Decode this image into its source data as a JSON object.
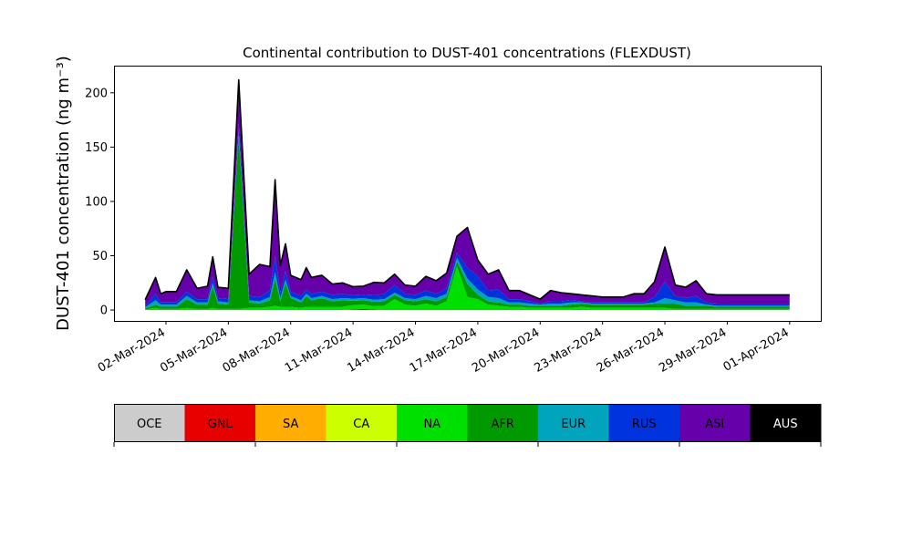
{
  "chart_data": {
    "type": "area",
    "stacked": true,
    "title": "Continental contribution to DUST-401 concentrations (FLEXDUST)",
    "ylabel": "DUST-401 concentration (ng m⁻³)",
    "xlabel": "",
    "ylim": [
      -10,
      225
    ],
    "yticks": [
      0,
      50,
      100,
      150,
      200
    ],
    "xlim": [
      "2024-02-28T12:00",
      "2024-04-02T12:00"
    ],
    "xticks": [
      "02-Mar-2024",
      "05-Mar-2024",
      "08-Mar-2024",
      "11-Mar-2024",
      "14-Mar-2024",
      "17-Mar-2024",
      "20-Mar-2024",
      "23-Mar-2024",
      "26-Mar-2024",
      "29-Mar-2024",
      "01-Apr-2024"
    ],
    "grid": false,
    "categories": [
      "OCE",
      "GNL",
      "SA",
      "CA",
      "NA",
      "AFR",
      "EUR",
      "RUS",
      "ASI",
      "AUS"
    ],
    "colors": [
      "#cccccc",
      "#e60000",
      "#ffad00",
      "#ccff00",
      "#00e000",
      "#009a00",
      "#00a5bd",
      "#0033dd",
      "#6600aa",
      "#000000"
    ],
    "category_text_colors": [
      "#000000",
      "#000000",
      "#000000",
      "#000000",
      "#000000",
      "#000000",
      "#000000",
      "#000000",
      "#000000",
      "#ffffff"
    ],
    "x": [
      "2024-03-01T00:00",
      "2024-03-01T12:00",
      "2024-03-01T18:00",
      "2024-03-02T00:00",
      "2024-03-02T12:00",
      "2024-03-03T00:00",
      "2024-03-03T12:00",
      "2024-03-04T00:00",
      "2024-03-04T06:00",
      "2024-03-04T12:00",
      "2024-03-05T00:00",
      "2024-03-05T12:00",
      "2024-03-06T00:00",
      "2024-03-06T12:00",
      "2024-03-07T00:00",
      "2024-03-07T06:00",
      "2024-03-07T12:00",
      "2024-03-07T18:00",
      "2024-03-08T00:00",
      "2024-03-08T12:00",
      "2024-03-08T18:00",
      "2024-03-09T00:00",
      "2024-03-09T12:00",
      "2024-03-10T00:00",
      "2024-03-10T12:00",
      "2024-03-11T00:00",
      "2024-03-11T12:00",
      "2024-03-12T00:00",
      "2024-03-12T12:00",
      "2024-03-13T00:00",
      "2024-03-13T12:00",
      "2024-03-14T00:00",
      "2024-03-14T12:00",
      "2024-03-15T00:00",
      "2024-03-15T12:00",
      "2024-03-16T00:00",
      "2024-03-16T12:00",
      "2024-03-17T00:00",
      "2024-03-17T12:00",
      "2024-03-18T00:00",
      "2024-03-18T12:00",
      "2024-03-19T00:00",
      "2024-03-19T12:00",
      "2024-03-20T00:00",
      "2024-03-20T12:00",
      "2024-03-21T00:00",
      "2024-03-21T12:00",
      "2024-03-22T00:00",
      "2024-03-22T12:00",
      "2024-03-23T00:00",
      "2024-03-23T12:00",
      "2024-03-24T00:00",
      "2024-03-24T12:00",
      "2024-03-25T00:00",
      "2024-03-25T12:00",
      "2024-03-26T00:00",
      "2024-03-26T12:00",
      "2024-03-27T00:00",
      "2024-03-27T12:00",
      "2024-03-28T00:00",
      "2024-03-28T12:00",
      "2024-03-29T00:00",
      "2024-03-29T12:00",
      "2024-03-30T00:00",
      "2024-03-30T12:00",
      "2024-03-31T00:00",
      "2024-03-31T12:00",
      "2024-04-01T00:00"
    ],
    "series": [
      {
        "name": "OCE",
        "values": [
          0,
          0,
          0,
          0,
          0,
          0,
          0,
          0,
          0,
          0,
          0,
          0,
          0,
          0,
          0,
          0,
          0,
          0,
          0,
          0,
          0,
          0,
          0,
          0,
          0,
          0,
          0,
          0,
          0,
          0,
          0,
          0,
          0,
          0,
          0,
          0,
          0,
          0,
          0,
          0,
          0,
          0,
          0,
          0,
          0,
          0,
          0,
          0,
          0,
          0,
          0,
          0,
          0,
          0,
          0,
          0,
          0,
          0,
          0,
          0,
          0,
          0,
          0,
          0,
          0,
          0,
          0,
          0
        ]
      },
      {
        "name": "GNL",
        "values": [
          0,
          0,
          0,
          0,
          0,
          0,
          0,
          0,
          0,
          0,
          0,
          0,
          0,
          0,
          0,
          0,
          0,
          0,
          0,
          0,
          0,
          0,
          0,
          0,
          0,
          0.5,
          1,
          0.5,
          0,
          0,
          0,
          0,
          0,
          0,
          0,
          0,
          0,
          0,
          0,
          0,
          0,
          0,
          0,
          0,
          0,
          0,
          0,
          0,
          0,
          0,
          0,
          0,
          0,
          0,
          0,
          0,
          0,
          0,
          0,
          0,
          0,
          0,
          0,
          0,
          0,
          0,
          0,
          0
        ]
      },
      {
        "name": "SA",
        "values": [
          0,
          0,
          0,
          0,
          0,
          0,
          0,
          0,
          0,
          0,
          0,
          0,
          0,
          0,
          0,
          0,
          0,
          0,
          0,
          0,
          0,
          0,
          0,
          0,
          0,
          0,
          0,
          0,
          0,
          0,
          0,
          0,
          0,
          0,
          0,
          0,
          0,
          0,
          0,
          0,
          0,
          0,
          0,
          0,
          0,
          0,
          0,
          0,
          0,
          0,
          0,
          0,
          0,
          0,
          0,
          0,
          0,
          0,
          0,
          0,
          0,
          0,
          0,
          0,
          0,
          0,
          0,
          0
        ]
      },
      {
        "name": "CA",
        "values": [
          0,
          0,
          0,
          0,
          0,
          0,
          0,
          0,
          0,
          0,
          0,
          0,
          0,
          0,
          0,
          0,
          0,
          0,
          0,
          0,
          0,
          0,
          0,
          0,
          0,
          0,
          0,
          0,
          0,
          0,
          0,
          0,
          0,
          0,
          0,
          0,
          0,
          0,
          0,
          0,
          0,
          0,
          0,
          0,
          0,
          0,
          0,
          0,
          0,
          0,
          0,
          0,
          0,
          0,
          0,
          0,
          0,
          0,
          0,
          0,
          0,
          0,
          0,
          0,
          0,
          0,
          0,
          0
        ]
      },
      {
        "name": "NA",
        "values": [
          0.5,
          2,
          1,
          1,
          1,
          2,
          1,
          1,
          2,
          1,
          1,
          1,
          2,
          2,
          3,
          4,
          3,
          3,
          3,
          2,
          3,
          3,
          3,
          3,
          3,
          4,
          4,
          3,
          4,
          10,
          5,
          4,
          6,
          4,
          8,
          40,
          12,
          10,
          5,
          4,
          3,
          3,
          2,
          2,
          2,
          2,
          2,
          3,
          2,
          2,
          2,
          2,
          2,
          2,
          2,
          2,
          1,
          1,
          1,
          1,
          1,
          1,
          1,
          1,
          1,
          1,
          1,
          1
        ]
      },
      {
        "name": "AFR",
        "values": [
          1,
          3,
          2,
          2,
          2,
          8,
          4,
          4,
          20,
          5,
          4,
          160,
          5,
          4,
          6,
          25,
          5,
          22,
          8,
          5,
          10,
          6,
          8,
          5,
          6,
          4,
          4,
          4,
          4,
          4,
          4,
          4,
          4,
          4,
          4,
          5,
          12,
          4,
          3,
          3,
          2,
          2,
          2,
          2,
          2,
          2,
          3,
          3,
          3,
          3,
          3,
          3,
          3,
          3,
          4,
          4,
          5,
          3,
          3,
          3,
          2,
          2,
          2,
          2,
          2,
          2,
          2,
          2
        ]
      },
      {
        "name": "EUR",
        "values": [
          1,
          4,
          2,
          2,
          2,
          3,
          2,
          2,
          3,
          2,
          2,
          3,
          2,
          2,
          3,
          6,
          3,
          3,
          2,
          2,
          2,
          2,
          2,
          2,
          2,
          2,
          2,
          2,
          2,
          2,
          2,
          2,
          3,
          3,
          3,
          3,
          5,
          5,
          4,
          4,
          2,
          2,
          2,
          1,
          2,
          2,
          2,
          1,
          1,
          1,
          1,
          1,
          1,
          1,
          1,
          5,
          3,
          3,
          3,
          1,
          1,
          1,
          1,
          1,
          1,
          1,
          1,
          1
        ]
      },
      {
        "name": "RUS",
        "values": [
          1,
          6,
          2,
          2,
          2,
          4,
          3,
          3,
          6,
          3,
          3,
          8,
          4,
          4,
          6,
          15,
          5,
          8,
          4,
          4,
          4,
          4,
          4,
          4,
          4,
          3,
          3,
          4,
          5,
          7,
          4,
          4,
          5,
          4,
          5,
          5,
          10,
          12,
          6,
          8,
          3,
          3,
          2,
          1,
          2,
          2,
          2,
          1,
          1,
          1,
          1,
          1,
          1,
          1,
          5,
          15,
          4,
          4,
          6,
          2,
          2,
          2,
          2,
          2,
          2,
          2,
          2,
          2
        ]
      },
      {
        "name": "ASI",
        "values": [
          6,
          15,
          8,
          10,
          10,
          20,
          10,
          12,
          18,
          10,
          10,
          40,
          20,
          30,
          22,
          70,
          25,
          25,
          15,
          15,
          20,
          15,
          15,
          10,
          10,
          8,
          8,
          12,
          10,
          10,
          8,
          8,
          13,
          12,
          14,
          15,
          37,
          15,
          15,
          18,
          8,
          8,
          6,
          4,
          10,
          8,
          6,
          6,
          6,
          5,
          5,
          5,
          8,
          8,
          14,
          32,
          10,
          10,
          14,
          8,
          8,
          8,
          8,
          8,
          8,
          8,
          8,
          8
        ]
      },
      {
        "name": "AUS",
        "values": [
          0,
          0,
          0,
          0,
          0,
          0,
          0,
          0,
          0,
          0,
          0,
          0,
          0,
          0,
          0,
          0,
          0,
          0,
          0,
          0,
          0,
          0,
          0,
          0,
          0,
          0,
          0,
          0,
          0,
          0,
          0,
          0,
          0,
          0,
          0,
          0,
          0,
          0,
          0,
          0,
          0,
          0,
          0,
          0,
          0,
          0,
          0,
          0,
          0,
          0,
          0,
          0,
          0,
          0,
          0,
          0,
          0,
          0,
          0,
          0,
          0,
          0,
          0,
          0,
          0,
          0,
          0,
          0
        ]
      }
    ]
  }
}
